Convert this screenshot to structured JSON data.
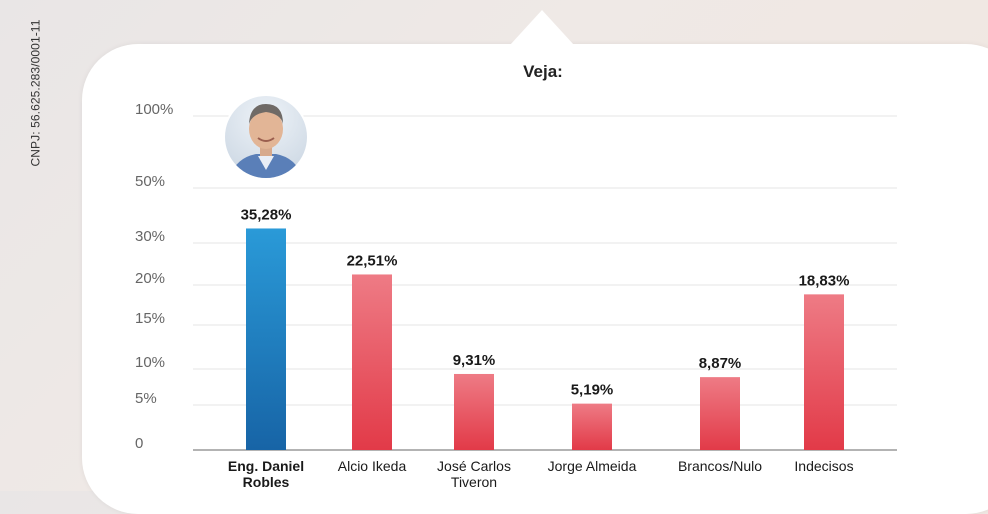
{
  "cnpj_text": "CNPJ: 56.625.283/0001-11",
  "chart_data": {
    "type": "bar",
    "title": "Veja:",
    "xlabel": "",
    "ylabel": "",
    "y_ticks": [
      "100%",
      "50%",
      "30%",
      "20%",
      "15%",
      "10%",
      "5%",
      "0"
    ],
    "categories": [
      [
        "Eng. Daniel",
        "Robles"
      ],
      [
        "Alcio Ikeda"
      ],
      [
        "José Carlos",
        "Tiveron"
      ],
      [
        "Jorge Almeida"
      ],
      [
        "Brancos/Nulo"
      ],
      [
        "Indecisos"
      ]
    ],
    "values": [
      35.28,
      22.51,
      9.31,
      5.19,
      8.87,
      18.83
    ],
    "value_labels": [
      "35,28%",
      "22,51%",
      "9,31%",
      "5,19%",
      "8,87%",
      "18,83%"
    ],
    "highlight_index": 0,
    "colors": {
      "highlight": [
        "#2a9ad8",
        "#1764a6"
      ],
      "other": [
        "#ee7b85",
        "#e23a48"
      ],
      "grid": "#e6e6e6",
      "axis": "#9a9a9a"
    },
    "highlight_avatar": "candidate-photo",
    "grid": true
  }
}
